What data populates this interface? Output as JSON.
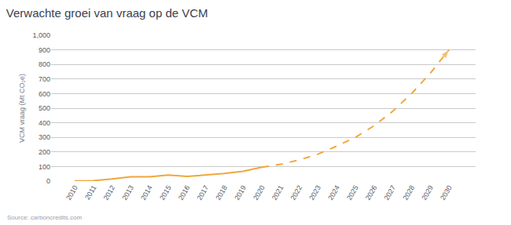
{
  "chart_data": {
    "type": "line",
    "title": "Verwachte groei van vraag op de VCM",
    "y_label": "VCM vraag (Mt CO₂e)",
    "source": "Source: carboncredits.com",
    "categories": [
      "2010",
      "2011",
      "2012",
      "2013",
      "2014",
      "2015",
      "2016",
      "2017",
      "2018",
      "2019",
      "2020",
      "2021",
      "2022",
      "2023",
      "2024",
      "2025",
      "2026",
      "2027",
      "2028",
      "2029",
      "2030"
    ],
    "series": [
      {
        "color": "#f0a73a",
        "line_style": "solid",
        "values": [
          2,
          3,
          15,
          30,
          30,
          42,
          32,
          42,
          52,
          67,
          95,
          null,
          null,
          null,
          null,
          null,
          null,
          null,
          null,
          null,
          null
        ]
      },
      {
        "color": "#f0a73a",
        "line_style": "dashed",
        "marker": "arrow",
        "values": [
          null,
          null,
          null,
          null,
          null,
          null,
          null,
          null,
          null,
          null,
          95,
          115,
          145,
          185,
          240,
          300,
          380,
          480,
          600,
          740,
          900
        ]
      }
    ],
    "ylim": [
      0,
      1000
    ],
    "yticks": [
      0,
      100,
      200,
      300,
      400,
      500,
      600,
      700,
      800,
      900,
      {
        "value": 1000,
        "label": "1,000"
      }
    ],
    "grid": true
  }
}
